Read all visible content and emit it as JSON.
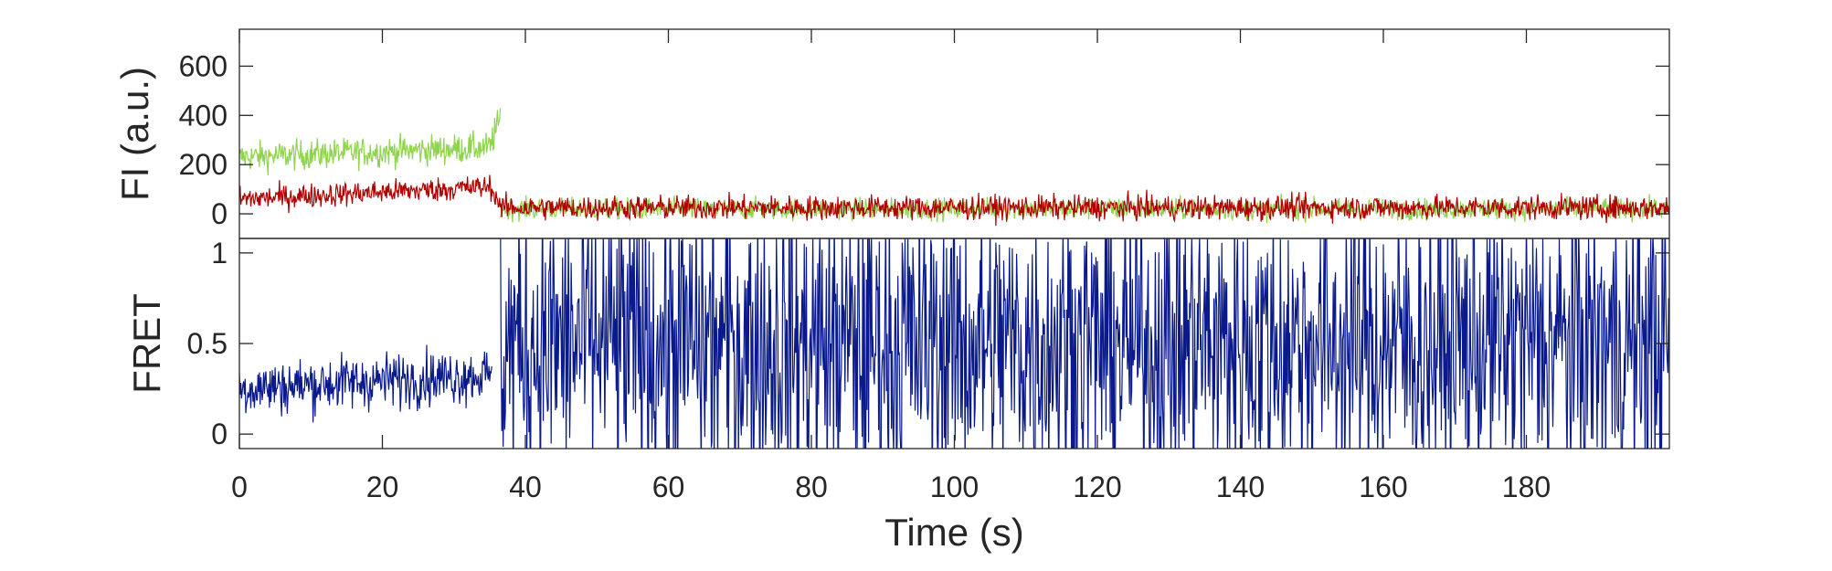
{
  "chart_data": [
    {
      "type": "line",
      "panel": "top",
      "ylabel": "FI (a.u.)",
      "xlim": [
        0,
        200
      ],
      "ylim": [
        -100,
        750
      ],
      "yticks": [
        0,
        200,
        400,
        600
      ],
      "yticklabels": [
        "0",
        "200",
        "400",
        "600"
      ],
      "grid": false,
      "series": [
        {
          "color": "#8fd44e",
          "segments": [
            {
              "x": [
                0,
                35.3
              ],
              "mean": [
                230,
                270
              ],
              "noise": 55
            },
            {
              "x": [
                35.3,
                36.5
              ],
              "mean": [
                300,
                380
              ],
              "noise": 60
            },
            {
              "x": [
                36.5,
                200
              ],
              "mean": [
                20,
                20
              ],
              "noise": 40
            }
          ]
        },
        {
          "color": "#b00000",
          "segments": [
            {
              "x": [
                0,
                35.3
              ],
              "mean": [
                60,
                110
              ],
              "noise": 45
            },
            {
              "x": [
                35.3,
                36.5
              ],
              "mean": [
                90,
                40
              ],
              "noise": 30
            },
            {
              "x": [
                36.5,
                200
              ],
              "mean": [
                25,
                25
              ],
              "noise": 45
            }
          ]
        }
      ]
    },
    {
      "type": "line",
      "panel": "bottom",
      "xlabel": "Time (s)",
      "ylabel": "FRET",
      "xlim": [
        0,
        200
      ],
      "ylim": [
        -0.08,
        1.08
      ],
      "yticks": [
        0,
        0.5,
        1
      ],
      "yticklabels": [
        "0",
        "0.5",
        "1"
      ],
      "xticks": [
        0,
        20,
        40,
        60,
        80,
        100,
        120,
        140,
        160,
        180
      ],
      "xticklabels": [
        "0",
        "20",
        "40",
        "60",
        "80",
        "100",
        "120",
        "140",
        "160",
        "180"
      ],
      "grid": false,
      "series": [
        {
          "color": "#0a1a8c",
          "segments": [
            {
              "x": [
                0,
                35.3
              ],
              "mean": [
                0.25,
                0.33
              ],
              "noise": 0.14
            },
            {
              "x": [
                36.5,
                200
              ],
              "mean": [
                0.5,
                0.5
              ],
              "noise": 0.75
            }
          ]
        }
      ]
    }
  ]
}
